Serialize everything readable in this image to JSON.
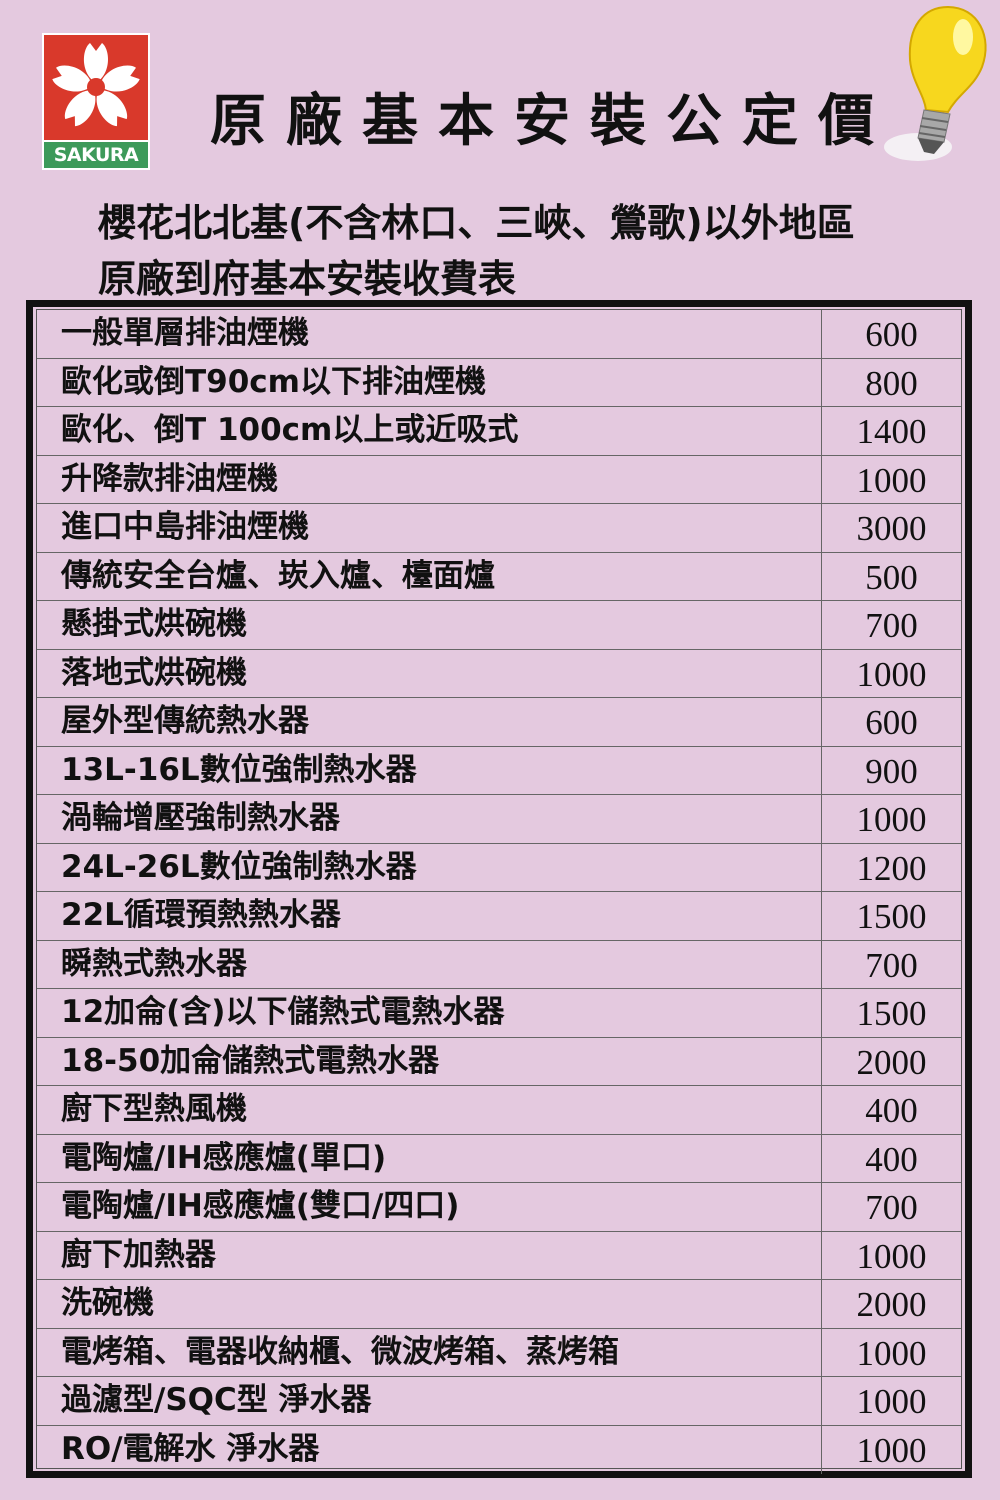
{
  "logo": {
    "brand": "SAKURA",
    "colors": {
      "red": "#d9392b",
      "green": "#3d9a5a"
    }
  },
  "title": "原廠基本安裝公定價",
  "subtitle": {
    "line1": "櫻花北北基(不含林口、三峽、鶯歌)以外地區",
    "line2": "原廠到府基本安裝收費表"
  },
  "items": [
    {
      "name": "一般單層排油煙機",
      "price": "600"
    },
    {
      "name": "歐化或倒T90cm以下排油煙機",
      "price": "800"
    },
    {
      "name": "歐化、倒T 100cm以上或近吸式",
      "price": "1400"
    },
    {
      "name": "升降款排油煙機",
      "price": "1000"
    },
    {
      "name": "進口中島排油煙機",
      "price": "3000"
    },
    {
      "name": "傳統安全台爐、崁入爐、檯面爐",
      "price": "500"
    },
    {
      "name": "懸掛式烘碗機",
      "price": "700"
    },
    {
      "name": "落地式烘碗機",
      "price": "1000"
    },
    {
      "name": "屋外型傳統熱水器",
      "price": "600"
    },
    {
      "name": "13L-16L數位強制熱水器",
      "price": "900"
    },
    {
      "name": "渦輪增壓強制熱水器",
      "price": "1000"
    },
    {
      "name": "24L-26L數位強制熱水器",
      "price": "1200"
    },
    {
      "name": "22L循環預熱熱水器",
      "price": "1500"
    },
    {
      "name": "瞬熱式熱水器",
      "price": "700"
    },
    {
      "name": "12加侖(含)以下儲熱式電熱水器",
      "price": "1500"
    },
    {
      "name": "18-50加侖儲熱式電熱水器",
      "price": "2000"
    },
    {
      "name": "廚下型熱風機",
      "price": "400"
    },
    {
      "name": "電陶爐/IH感應爐(單口)",
      "price": "400"
    },
    {
      "name": "電陶爐/IH感應爐(雙口/四口)",
      "price": "700"
    },
    {
      "name": "廚下加熱器",
      "price": "1000"
    },
    {
      "name": "洗碗機",
      "price": "2000"
    },
    {
      "name": "電烤箱、電器收納櫃、微波烤箱、蒸烤箱",
      "price": "1000"
    },
    {
      "name": "過濾型/SQC型 淨水器",
      "price": "1000"
    },
    {
      "name": "RO/電解水 淨水器",
      "price": "1000"
    }
  ]
}
